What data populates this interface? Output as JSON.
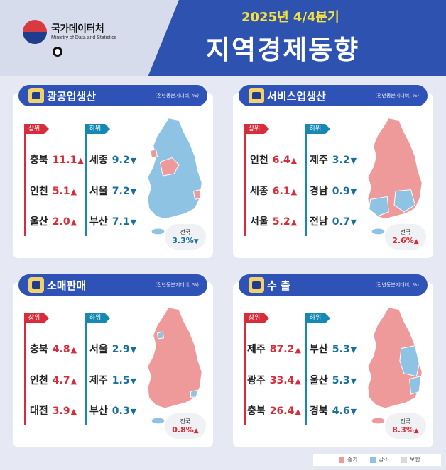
{
  "header": {
    "org_kr": "국가데이터처",
    "org_en": "Ministry of Data and Statistics",
    "period": "2025년 4/4분기",
    "title": "지역경제동향"
  },
  "note": "(전년동분기대비, %)",
  "top_label": "상위",
  "bottom_label": "하위",
  "national_label": "전국",
  "colors": {
    "increase": "#ef9a9a",
    "decrease": "#8fc3e3",
    "flat": "#d9d9d9",
    "up_text": "#d82c3a",
    "down_text": "#1a6f98",
    "navy": "#2d52b0"
  },
  "panels": [
    {
      "title": "광공업생산",
      "icon": "excavator-icon",
      "top": [
        {
          "region": "충북",
          "value": "11.1",
          "arrow": "▲"
        },
        {
          "region": "인천",
          "value": "5.1",
          "arrow": "▲"
        },
        {
          "region": "울산",
          "value": "2.0",
          "arrow": "▲"
        }
      ],
      "bottom": [
        {
          "region": "세종",
          "value": "9.2",
          "arrow": "▼"
        },
        {
          "region": "서울",
          "value": "7.2",
          "arrow": "▼"
        },
        {
          "region": "부산",
          "value": "7.1",
          "arrow": "▼"
        }
      ],
      "national": {
        "value": "3.3%",
        "arrow": "▼",
        "dir": "down"
      },
      "map_base": "decrease",
      "map_highlight": "increase"
    },
    {
      "title": "서비스업생산",
      "icon": "worker-icon",
      "top": [
        {
          "region": "인천",
          "value": "6.4",
          "arrow": "▲"
        },
        {
          "region": "세종",
          "value": "6.1",
          "arrow": "▲"
        },
        {
          "region": "서울",
          "value": "5.2",
          "arrow": "▲"
        }
      ],
      "bottom": [
        {
          "region": "제주",
          "value": "3.2",
          "arrow": "▼"
        },
        {
          "region": "경남",
          "value": "0.9",
          "arrow": "▼"
        },
        {
          "region": "전남",
          "value": "0.7",
          "arrow": "▼"
        }
      ],
      "national": {
        "value": "2.6%",
        "arrow": "▲",
        "dir": "up"
      },
      "map_base": "increase",
      "map_highlight": "decrease"
    },
    {
      "title": "소매판매",
      "icon": "shopping-bag-icon",
      "top": [
        {
          "region": "충북",
          "value": "4.8",
          "arrow": "▲"
        },
        {
          "region": "인천",
          "value": "4.7",
          "arrow": "▲"
        },
        {
          "region": "대전",
          "value": "3.9",
          "arrow": "▲"
        }
      ],
      "bottom": [
        {
          "region": "서울",
          "value": "2.9",
          "arrow": "▼"
        },
        {
          "region": "제주",
          "value": "1.5",
          "arrow": "▼"
        },
        {
          "region": "부산",
          "value": "0.3",
          "arrow": "▼"
        }
      ],
      "national": {
        "value": "0.8%",
        "arrow": "▲",
        "dir": "up"
      },
      "map_base": "increase",
      "map_highlight": "decrease"
    },
    {
      "title": "수 출",
      "icon": "ship-icon",
      "top": [
        {
          "region": "제주",
          "value": "87.2",
          "arrow": "▲"
        },
        {
          "region": "광주",
          "value": "33.4",
          "arrow": "▲"
        },
        {
          "region": "충북",
          "value": "26.4",
          "arrow": "▲"
        }
      ],
      "bottom": [
        {
          "region": "부산",
          "value": "5.3",
          "arrow": "▼"
        },
        {
          "region": "울산",
          "value": "5.3",
          "arrow": "▼"
        },
        {
          "region": "경북",
          "value": "4.6",
          "arrow": "▼"
        }
      ],
      "national": {
        "value": "8.3%",
        "arrow": "▲",
        "dir": "up"
      },
      "map_base": "increase",
      "map_highlight": "decrease"
    }
  ],
  "legend": [
    {
      "label": "증가",
      "color": "#ef9a9a"
    },
    {
      "label": "감소",
      "color": "#8fc3e3"
    },
    {
      "label": "보합",
      "color": "#d9d9d9"
    }
  ]
}
